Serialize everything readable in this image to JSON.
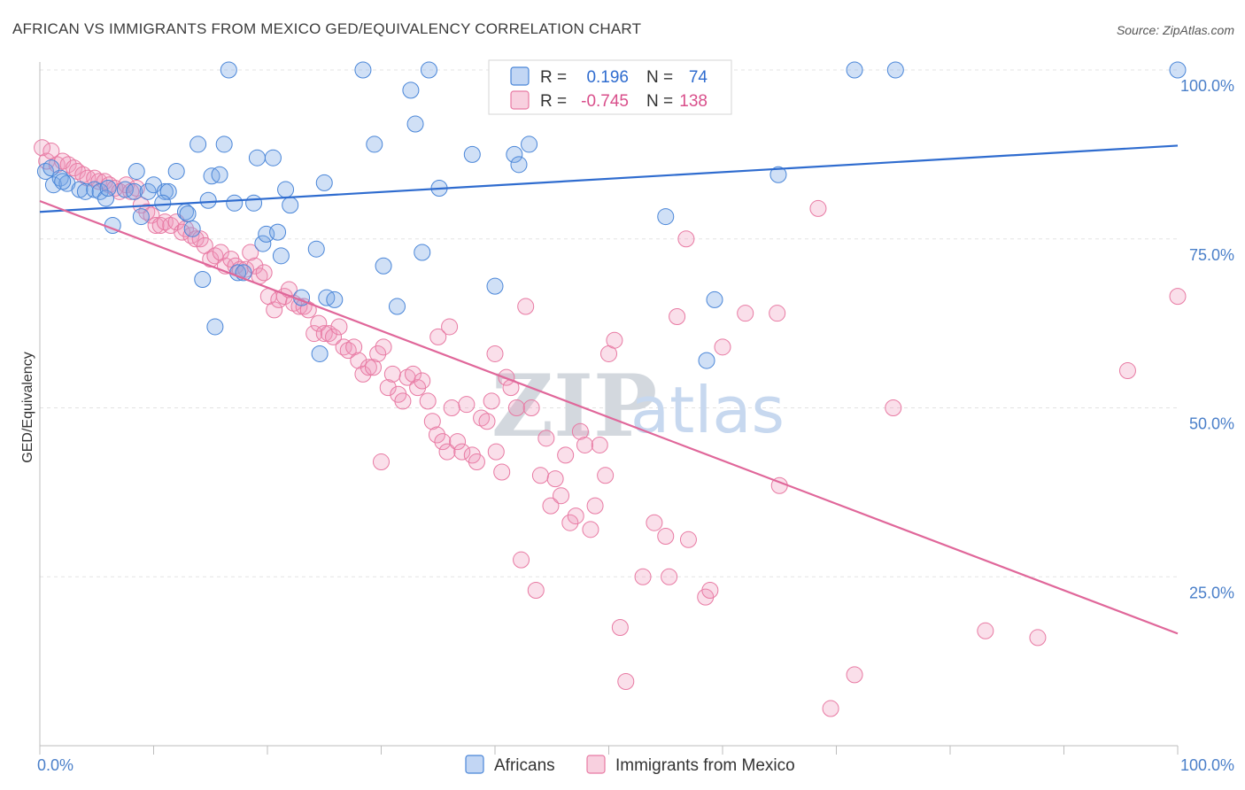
{
  "title": "AFRICAN VS IMMIGRANTS FROM MEXICO GED/EQUIVALENCY CORRELATION CHART",
  "source": "Source: ZipAtlas.com",
  "watermark": {
    "zip": "ZIP",
    "atlas": "atlas"
  },
  "colors": {
    "blue": "#4a86d8",
    "blue_fill": "rgba(120,165,230,0.35)",
    "blue_line": "#2f6ccf",
    "pink": "#e87aa3",
    "pink_fill": "rgba(240,150,185,0.30)",
    "pink_line": "#e0679a",
    "grid": "#e3e3e3",
    "tick_text": "#4a7fc9"
  },
  "legend": {
    "r_label": "R =",
    "n_label": "N =",
    "rows": [
      {
        "series": "Africans",
        "r": "0.196",
        "n": "74"
      },
      {
        "series": "Immigrants from Mexico",
        "r": "-0.745",
        "n": "138"
      }
    ]
  },
  "bottom_legend": [
    "Africans",
    "Immigrants from Mexico"
  ],
  "chart_data": {
    "type": "scatter",
    "title": "AFRICAN VS IMMIGRANTS FROM MEXICO GED/EQUIVALENCY CORRELATION CHART",
    "xlabel": "",
    "ylabel": "GED/Equivalency",
    "xlim": [
      0,
      100
    ],
    "ylim": [
      0,
      100
    ],
    "x_tick_labels": [
      "0.0%",
      "100.0%"
    ],
    "y_ticks": [
      25,
      50,
      75,
      100
    ],
    "y_tick_labels": [
      "25.0%",
      "50.0%",
      "75.0%",
      "100.0%"
    ],
    "grid": "horizontal dashed",
    "legend_position": "top-center",
    "series": [
      {
        "name": "Africans",
        "r": 0.196,
        "n": 74,
        "trend": {
          "x": [
            0,
            100
          ],
          "y": [
            79.0,
            88.8
          ]
        },
        "points": [
          [
            0.5,
            85.0
          ],
          [
            1.2,
            83.0
          ],
          [
            1.8,
            84.0
          ],
          [
            2.4,
            83.2
          ],
          [
            3.5,
            82.3
          ],
          [
            4.0,
            82.0
          ],
          [
            4.8,
            82.3
          ],
          [
            5.3,
            82.0
          ],
          [
            5.8,
            81.0
          ],
          [
            6.4,
            77.0
          ],
          [
            7.5,
            82.3
          ],
          [
            8.3,
            82.0
          ],
          [
            8.5,
            85.0
          ],
          [
            8.9,
            78.3
          ],
          [
            9.5,
            82.0
          ],
          [
            10.0,
            83.0
          ],
          [
            11.0,
            82.0
          ],
          [
            11.3,
            82.0
          ],
          [
            10.8,
            80.3
          ],
          [
            12.0,
            85.0
          ],
          [
            12.8,
            79.0
          ],
          [
            13.0,
            78.7
          ],
          [
            13.4,
            76.5
          ],
          [
            13.9,
            89.0
          ],
          [
            14.3,
            69.0
          ],
          [
            14.8,
            80.7
          ],
          [
            15.1,
            84.3
          ],
          [
            15.8,
            84.5
          ],
          [
            15.4,
            62.0
          ],
          [
            16.2,
            89.0
          ],
          [
            16.6,
            100.0
          ],
          [
            17.1,
            80.3
          ],
          [
            17.4,
            70.0
          ],
          [
            17.9,
            70.0
          ],
          [
            18.8,
            80.3
          ],
          [
            19.1,
            87.0
          ],
          [
            19.6,
            74.3
          ],
          [
            19.9,
            75.7
          ],
          [
            20.5,
            87.0
          ],
          [
            20.9,
            76.0
          ],
          [
            21.2,
            72.5
          ],
          [
            21.6,
            82.3
          ],
          [
            22.0,
            80.0
          ],
          [
            23.0,
            66.3
          ],
          [
            24.3,
            73.5
          ],
          [
            24.6,
            58.0
          ],
          [
            25.0,
            83.3
          ],
          [
            25.2,
            66.3
          ],
          [
            25.9,
            66.0
          ],
          [
            28.4,
            100.0
          ],
          [
            29.4,
            89.0
          ],
          [
            30.2,
            71.0
          ],
          [
            31.4,
            65.0
          ],
          [
            32.6,
            97.0
          ],
          [
            33.0,
            92.0
          ],
          [
            33.6,
            73.0
          ],
          [
            34.2,
            100.0
          ],
          [
            35.1,
            82.5
          ],
          [
            38.0,
            87.5
          ],
          [
            40.0,
            68.0
          ],
          [
            41.7,
            87.5
          ],
          [
            42.1,
            86.0
          ],
          [
            43.0,
            89.0
          ],
          [
            52.5,
            100.0
          ],
          [
            55.0,
            78.3
          ],
          [
            58.6,
            57.0
          ],
          [
            59.3,
            66.0
          ],
          [
            64.9,
            84.5
          ],
          [
            71.6,
            100.0
          ],
          [
            75.2,
            100.0
          ],
          [
            100.0,
            100.0
          ],
          [
            1.0,
            85.5
          ],
          [
            2.0,
            83.5
          ],
          [
            6.0,
            82.5
          ]
        ]
      },
      {
        "name": "Immigrants from Mexico",
        "r": -0.745,
        "n": 138,
        "trend": {
          "x": [
            0,
            100
          ],
          "y": [
            80.6,
            16.6
          ]
        },
        "points": [
          [
            0.2,
            88.5
          ],
          [
            0.6,
            86.5
          ],
          [
            1.0,
            88.0
          ],
          [
            1.5,
            86.0
          ],
          [
            2.0,
            86.5
          ],
          [
            2.5,
            86.0
          ],
          [
            3.0,
            85.5
          ],
          [
            3.3,
            85.0
          ],
          [
            3.8,
            84.5
          ],
          [
            4.2,
            84.0
          ],
          [
            4.8,
            84.0
          ],
          [
            5.2,
            83.5
          ],
          [
            5.7,
            83.5
          ],
          [
            6.1,
            83.0
          ],
          [
            6.6,
            82.5
          ],
          [
            7.0,
            82.0
          ],
          [
            7.6,
            83.0
          ],
          [
            8.0,
            82.0
          ],
          [
            8.5,
            82.5
          ],
          [
            8.9,
            80.0
          ],
          [
            9.4,
            79.0
          ],
          [
            9.8,
            78.5
          ],
          [
            10.2,
            77.0
          ],
          [
            10.6,
            77.0
          ],
          [
            11.0,
            77.5
          ],
          [
            11.5,
            77.0
          ],
          [
            12.0,
            77.5
          ],
          [
            12.5,
            76.0
          ],
          [
            12.8,
            76.5
          ],
          [
            13.3,
            75.5
          ],
          [
            13.7,
            75.0
          ],
          [
            14.1,
            75.0
          ],
          [
            14.5,
            74.0
          ],
          [
            15.0,
            72.0
          ],
          [
            15.4,
            72.5
          ],
          [
            15.9,
            73.0
          ],
          [
            16.3,
            71.0
          ],
          [
            16.8,
            72.0
          ],
          [
            17.2,
            71.0
          ],
          [
            17.6,
            70.5
          ],
          [
            18.1,
            70.5
          ],
          [
            18.5,
            73.0
          ],
          [
            18.9,
            71.0
          ],
          [
            19.3,
            69.5
          ],
          [
            19.7,
            70.0
          ],
          [
            20.1,
            66.5
          ],
          [
            20.6,
            64.5
          ],
          [
            21.0,
            66.0
          ],
          [
            21.5,
            66.5
          ],
          [
            21.9,
            67.5
          ],
          [
            22.3,
            65.5
          ],
          [
            22.8,
            65.0
          ],
          [
            23.2,
            65.0
          ],
          [
            23.6,
            64.5
          ],
          [
            24.1,
            61.0
          ],
          [
            24.5,
            62.5
          ],
          [
            25.0,
            61.0
          ],
          [
            25.4,
            61.0
          ],
          [
            25.8,
            60.5
          ],
          [
            26.3,
            62.0
          ],
          [
            26.7,
            59.0
          ],
          [
            27.1,
            58.5
          ],
          [
            27.6,
            59.0
          ],
          [
            28.0,
            57.0
          ],
          [
            28.4,
            55.0
          ],
          [
            28.9,
            56.0
          ],
          [
            29.3,
            56.0
          ],
          [
            29.7,
            58.0
          ],
          [
            30.2,
            59.0
          ],
          [
            30.6,
            53.0
          ],
          [
            31.0,
            55.0
          ],
          [
            31.5,
            52.0
          ],
          [
            31.9,
            51.0
          ],
          [
            32.3,
            54.5
          ],
          [
            32.8,
            55.0
          ],
          [
            33.2,
            53.0
          ],
          [
            33.6,
            54.0
          ],
          [
            34.1,
            51.0
          ],
          [
            34.5,
            48.0
          ],
          [
            34.9,
            46.0
          ],
          [
            35.4,
            45.0
          ],
          [
            35.8,
            43.5
          ],
          [
            36.2,
            50.0
          ],
          [
            36.7,
            45.0
          ],
          [
            37.1,
            43.5
          ],
          [
            37.5,
            50.5
          ],
          [
            38.0,
            43.0
          ],
          [
            38.4,
            42.0
          ],
          [
            38.8,
            48.5
          ],
          [
            39.3,
            48.0
          ],
          [
            39.7,
            51.0
          ],
          [
            40.1,
            43.5
          ],
          [
            40.6,
            40.5
          ],
          [
            41.0,
            54.5
          ],
          [
            41.4,
            53.0
          ],
          [
            41.9,
            50.0
          ],
          [
            42.3,
            27.5
          ],
          [
            42.7,
            65.0
          ],
          [
            43.2,
            50.0
          ],
          [
            43.6,
            23.0
          ],
          [
            44.0,
            40.0
          ],
          [
            44.5,
            45.5
          ],
          [
            44.9,
            35.5
          ],
          [
            45.3,
            39.5
          ],
          [
            45.8,
            37.0
          ],
          [
            46.2,
            43.0
          ],
          [
            46.6,
            33.0
          ],
          [
            47.1,
            34.0
          ],
          [
            47.5,
            46.5
          ],
          [
            47.9,
            44.5
          ],
          [
            48.4,
            32.0
          ],
          [
            48.8,
            35.5
          ],
          [
            49.2,
            44.5
          ],
          [
            49.7,
            40.0
          ],
          [
            35.0,
            60.5
          ],
          [
            36.0,
            62.0
          ],
          [
            40.0,
            58.0
          ],
          [
            30.0,
            42.0
          ],
          [
            50.0,
            58.0
          ],
          [
            50.5,
            60.0
          ],
          [
            51.0,
            17.5
          ],
          [
            51.5,
            9.5
          ],
          [
            53.0,
            25.0
          ],
          [
            54.0,
            33.0
          ],
          [
            55.0,
            31.0
          ],
          [
            55.3,
            25.0
          ],
          [
            56.0,
            63.5
          ],
          [
            57.0,
            30.5
          ],
          [
            58.5,
            22.0
          ],
          [
            58.9,
            23.0
          ],
          [
            60.0,
            59.0
          ],
          [
            62.0,
            64.0
          ],
          [
            64.8,
            64.0
          ],
          [
            65.0,
            38.5
          ],
          [
            68.4,
            79.5
          ],
          [
            69.5,
            5.5
          ],
          [
            71.6,
            10.5
          ],
          [
            75.0,
            50.0
          ],
          [
            83.1,
            17.0
          ],
          [
            87.7,
            16.0
          ],
          [
            95.6,
            55.5
          ],
          [
            100.0,
            66.5
          ],
          [
            52.4,
            100.0
          ],
          [
            56.8,
            75.0
          ]
        ]
      }
    ]
  }
}
